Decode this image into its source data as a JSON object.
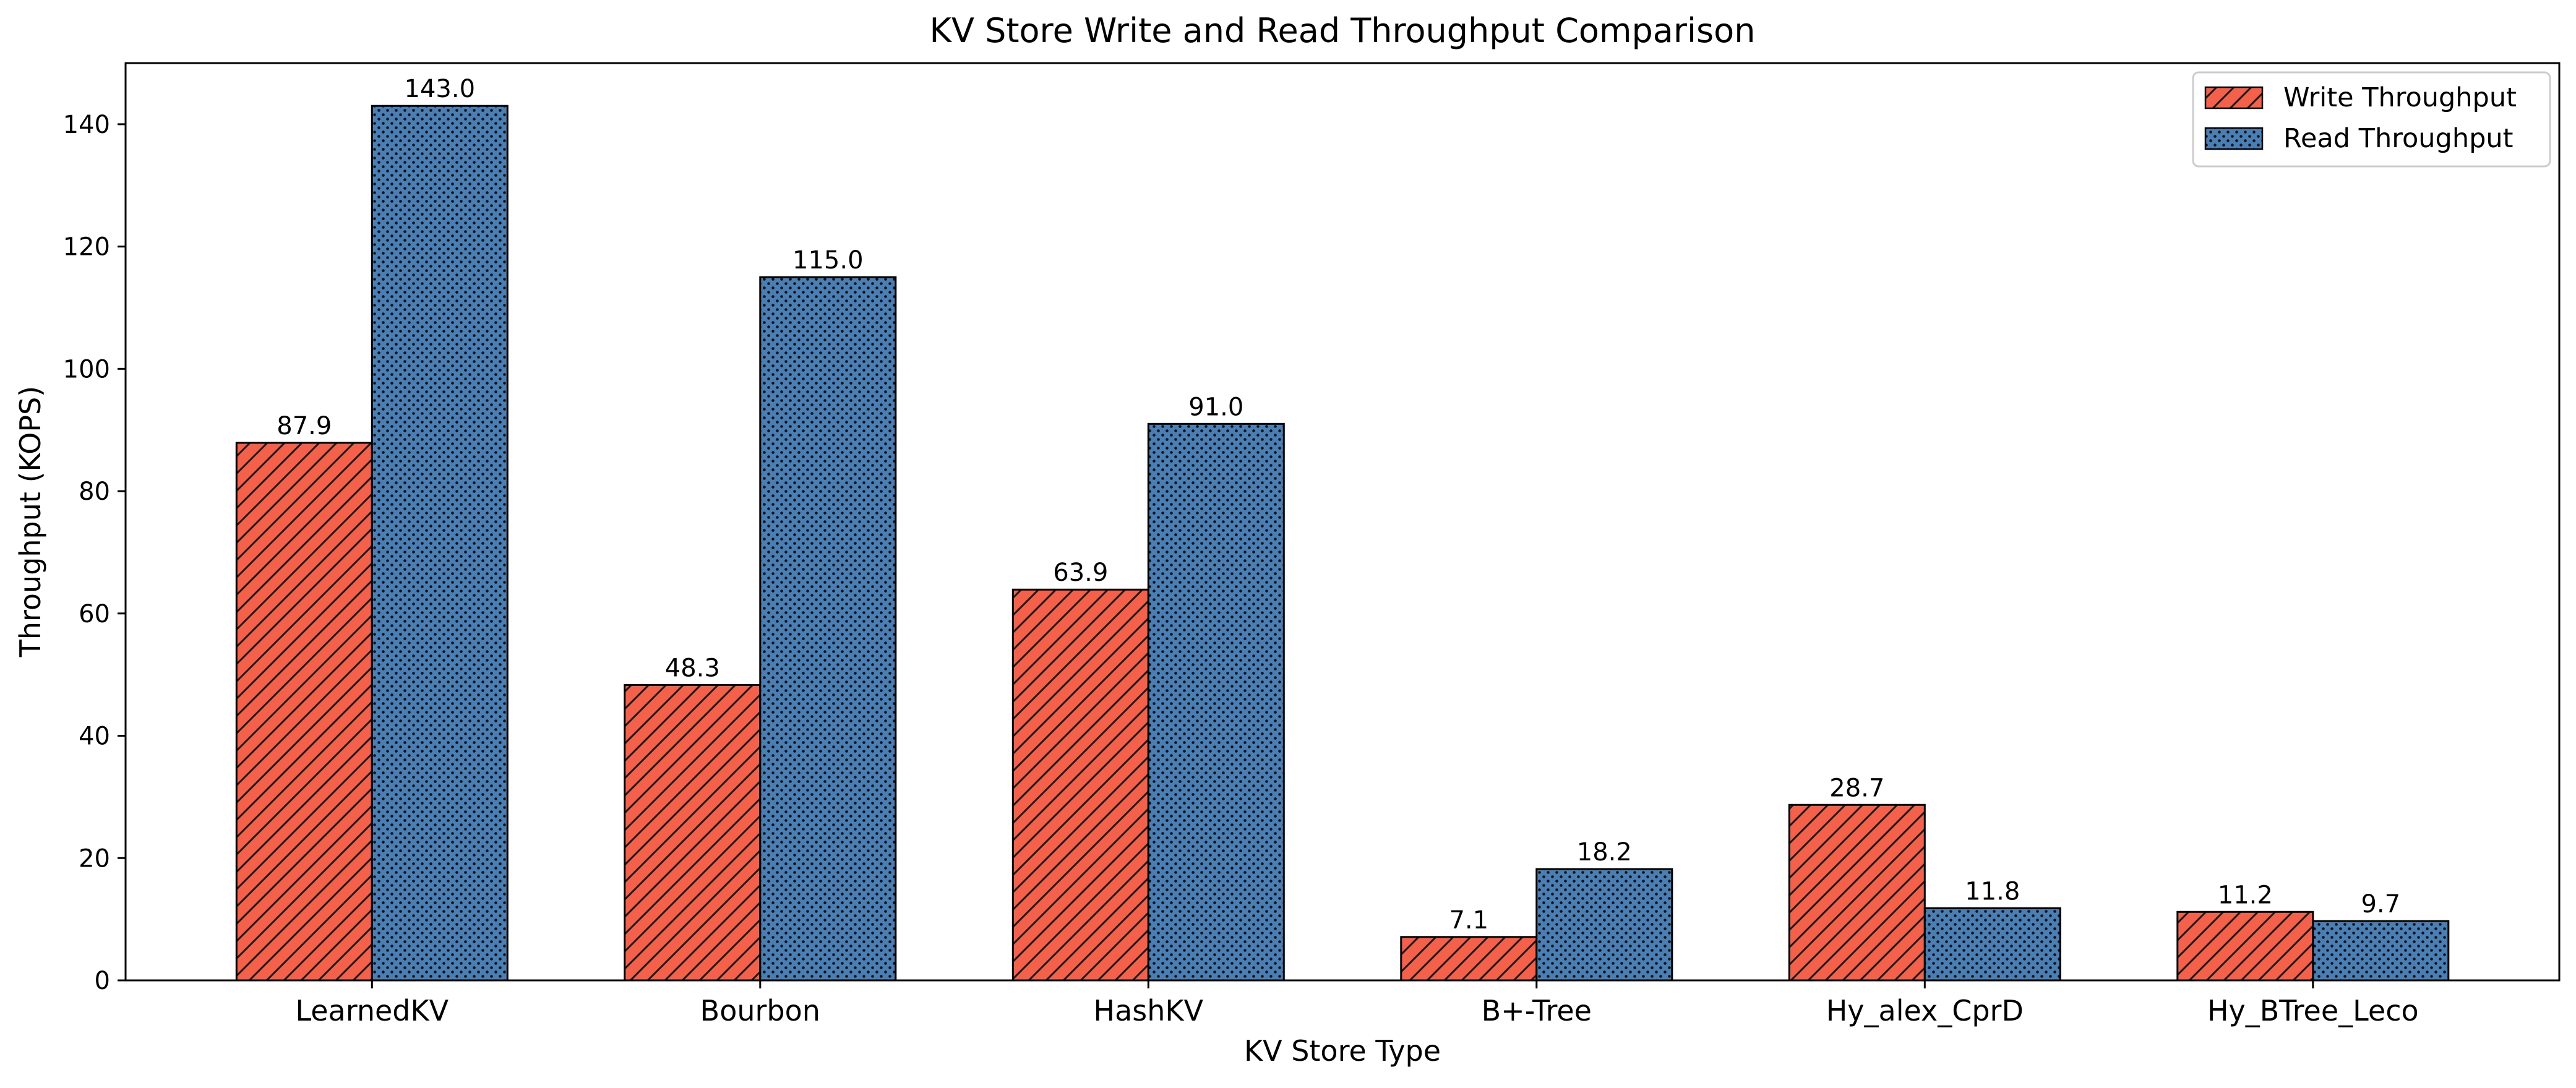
{
  "chart_data": {
    "type": "bar",
    "title": "KV Store Write and Read Throughput Comparison",
    "xlabel": "KV Store Type",
    "ylabel": "Throughput (KOPS)",
    "categories": [
      "LearnedKV",
      "Bourbon",
      "HashKV",
      "B+-Tree",
      "Hy_alex_CprD",
      "Hy_BTree_Leco"
    ],
    "series": [
      {
        "name": "Write Throughput",
        "values": [
          87.9,
          48.3,
          63.9,
          7.1,
          28.7,
          11.2
        ],
        "labels": [
          "87.9",
          "48.3",
          "63.9",
          "7.1",
          "28.7",
          "11.2"
        ],
        "color": "#f4604a",
        "pattern": "diagonal-hatch"
      },
      {
        "name": "Read Throughput",
        "values": [
          143.0,
          115.0,
          91.0,
          18.2,
          11.8,
          9.7
        ],
        "labels": [
          "143.0",
          "115.0",
          "91.0",
          "18.2",
          "11.8",
          "9.7"
        ],
        "color": "#4a7fb5",
        "pattern": "dots"
      }
    ],
    "ylim": [
      0,
      150
    ],
    "yticks": [
      0,
      20,
      40,
      60,
      80,
      100,
      120,
      140
    ],
    "ytick_labels": [
      "0",
      "20",
      "40",
      "60",
      "80",
      "100",
      "120",
      "140"
    ],
    "grid": false,
    "legend_position": "top-right"
  }
}
